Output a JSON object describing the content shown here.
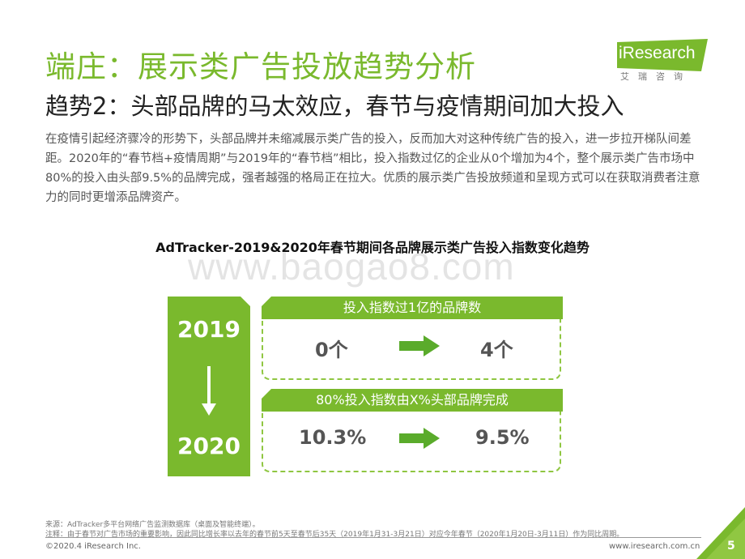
{
  "header": {
    "title": "端庄：展示类广告投放趋势分析",
    "subtitle": "趋势2：头部品牌的马太效应，春节与疫情期间加大投入"
  },
  "logo": {
    "text": "iResearch",
    "sub": "艾瑞咨询",
    "color": "#7ab92d"
  },
  "body_text": "在疫情引起经济骤冷的形势下，头部品牌并未缩减展示类广告的投入，反而加大对这种传统广告的投入，进一步拉开梯队间差距。2020年的“春节档+疫情周期”与2019年的“春节档”相比，投入指数过亿的企业从0个增加为4个，整个展示类广告市场中80%的投入由头部9.5%的品牌完成，强者越强的格局正在拉大。优质的展示类广告投放频道和呈现方式可以在获取消费者注意力的同时更增添品牌资产。",
  "chart": {
    "title": "AdTracker-2019&2020年春节期间各品牌展示类广告投入指数变化趋势",
    "watermark": "www.baogao8.com",
    "year_from": "2019",
    "year_to": "2020",
    "panels": [
      {
        "heading": "投入指数过1亿的品牌数",
        "from": "0个",
        "to": "4个"
      },
      {
        "heading": "80%投入指数由X%头部品牌完成",
        "from": "10.3%",
        "to": "9.5%"
      }
    ],
    "accent": "#7ab92d",
    "arrow_color": "#5aab2b"
  },
  "footer": {
    "source": "来源：AdTracker多平台网络广告监测数据库（桌面及智能终端）。",
    "note": "注释：由于春节对广告市场的重要影响，因此同比增长率以去年的春节前5天至春节后35天（2019年1月31-3月21日）对应今年春节（2020年1月20日-3月11日）作为同比周期。",
    "copyright": "©2020.4 iResearch Inc.",
    "website": "www.iresearch.com.cn",
    "page": "5"
  }
}
